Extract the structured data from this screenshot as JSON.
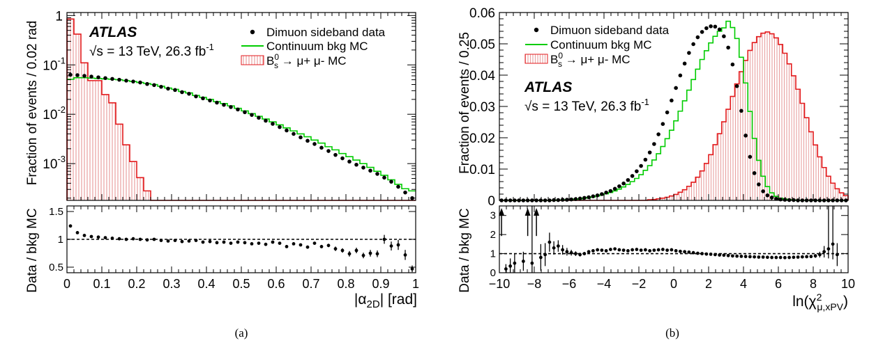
{
  "colors": {
    "data": "#000000",
    "bkg": "#00cc00",
    "signal": "#e31a1c",
    "hatch": "#e8a0a0"
  },
  "chart_data": [
    {
      "type": "histogram",
      "caption": "(a)",
      "ylabel": "Fraction of events / 0.02 rad",
      "xlabel": "|α2D| [rad]",
      "xlabel_parts": {
        "pre": "|α",
        "sub": "2D",
        "post": "| [rad]"
      },
      "y_scale": "log",
      "xlim": [
        0,
        1
      ],
      "ylim": [
        0.00018,
        1.15
      ],
      "x_ticks": [
        0,
        0.1,
        0.2,
        0.3,
        0.4,
        0.5,
        0.6,
        0.7,
        0.8,
        0.9,
        1
      ],
      "x_tick_labels": [
        "0",
        "0.1",
        "0.2",
        "0.3",
        "0.4",
        "0.5",
        "0.6",
        "0.7",
        "0.8",
        "0.9",
        "1"
      ],
      "y_ticks": [
        1,
        0.1,
        0.01,
        0.001
      ],
      "y_tick_labels": [
        {
          "base": "1",
          "exp": ""
        },
        {
          "base": "10",
          "exp": "-1"
        },
        {
          "base": "10",
          "exp": "-2"
        },
        {
          "base": "10",
          "exp": "-3"
        }
      ],
      "atlas": {
        "label": "ATLAS",
        "energy_pre": "√s = 13 TeV, 26.3 fb",
        "energy_exp": "-1"
      },
      "legend": {
        "data": "Dimuon sideband data",
        "bkg": "Continuum bkg MC",
        "signal": {
          "pre": "B",
          "sup": "0",
          "sub": "s",
          "post": " → μ+ μ- MC"
        }
      },
      "bin_width": 0.02,
      "signal_values": [
        0.85,
        0.42,
        0.11,
        0.048,
        0.048,
        0.025,
        0.017,
        0.0063,
        0.0024,
        0.0011,
        0.00052,
        0.00028,
        0.00018,
        0.00018,
        0.00018,
        0.00018,
        0.00018,
        0.00018,
        0.00018,
        0.00018,
        0.00018,
        0.00018,
        0.00018,
        0.00018,
        0.00018,
        0.00018,
        0.00018,
        0.00018,
        0.00018,
        0.00018,
        0.00018,
        0.00018,
        0.00018,
        0.00018,
        0.00018,
        0.00018,
        0.00018,
        0.00018,
        0.00018,
        0.00018,
        0.00018,
        0.00018,
        0.00018,
        0.00018,
        0.00018,
        0.00018,
        0.00018,
        0.00018,
        0.00018,
        0.00018
      ],
      "bkg_values": [
        0.051,
        0.055,
        0.055,
        0.054,
        0.053,
        0.052,
        0.051,
        0.05,
        0.048,
        0.046,
        0.044,
        0.042,
        0.04,
        0.037,
        0.034,
        0.032,
        0.029,
        0.027,
        0.024,
        0.022,
        0.02,
        0.018,
        0.0165,
        0.0148,
        0.0132,
        0.0117,
        0.0103,
        0.0091,
        0.008,
        0.007,
        0.0061,
        0.0053,
        0.0046,
        0.004,
        0.0035,
        0.003,
        0.0026,
        0.0022,
        0.0019,
        0.0016,
        0.00138,
        0.00118,
        0.001,
        0.00084,
        0.0007,
        0.00058,
        0.00047,
        0.00038,
        0.00031,
        0.00028
      ],
      "data_x": [
        0.01,
        0.03,
        0.05,
        0.07,
        0.09,
        0.11,
        0.13,
        0.15,
        0.17,
        0.19,
        0.21,
        0.23,
        0.25,
        0.27,
        0.29,
        0.31,
        0.33,
        0.35,
        0.37,
        0.39,
        0.41,
        0.43,
        0.45,
        0.47,
        0.49,
        0.51,
        0.53,
        0.55,
        0.57,
        0.59,
        0.61,
        0.63,
        0.65,
        0.67,
        0.69,
        0.71,
        0.73,
        0.75,
        0.77,
        0.79,
        0.81,
        0.83,
        0.85,
        0.87,
        0.89,
        0.91,
        0.93,
        0.95,
        0.97,
        0.99
      ],
      "data_values": [
        0.063,
        0.062,
        0.06,
        0.058,
        0.056,
        0.054,
        0.052,
        0.05,
        0.048,
        0.046,
        0.044,
        0.041,
        0.039,
        0.036,
        0.033,
        0.031,
        0.028,
        0.026,
        0.023,
        0.021,
        0.019,
        0.0172,
        0.0155,
        0.014,
        0.0125,
        0.011,
        0.0097,
        0.0085,
        0.0074,
        0.0064,
        0.0055,
        0.0047,
        0.004,
        0.0034,
        0.0029,
        0.0025,
        0.0021,
        0.0018,
        0.0015,
        0.00128,
        0.0011,
        0.00095,
        0.00083,
        0.00072,
        0.00062,
        0.00052,
        0.00043,
        0.00034,
        0.00026,
        0.0002
      ],
      "ratio": {
        "ylabel": "Data / bkg MC",
        "ylim": [
          0.4,
          1.6
        ],
        "y_ticks": [
          0.5,
          1,
          1.5
        ],
        "y_tick_labels": [
          "0.5",
          "1",
          "1.5"
        ],
        "reference": 1,
        "x": [
          0.01,
          0.03,
          0.05,
          0.07,
          0.09,
          0.11,
          0.13,
          0.15,
          0.17,
          0.19,
          0.21,
          0.23,
          0.25,
          0.27,
          0.29,
          0.31,
          0.33,
          0.35,
          0.37,
          0.39,
          0.41,
          0.43,
          0.45,
          0.47,
          0.49,
          0.51,
          0.53,
          0.55,
          0.57,
          0.59,
          0.61,
          0.63,
          0.65,
          0.67,
          0.69,
          0.71,
          0.73,
          0.75,
          0.77,
          0.79,
          0.81,
          0.83,
          0.85,
          0.87,
          0.89,
          0.91,
          0.93,
          0.95,
          0.97,
          0.99
        ],
        "values": [
          1.24,
          1.12,
          1.07,
          1.05,
          1.04,
          1.03,
          1.02,
          1.01,
          1.0,
          1.01,
          1.0,
          0.99,
          1.0,
          0.98,
          0.97,
          0.98,
          0.96,
          0.97,
          0.98,
          0.95,
          0.96,
          0.94,
          0.95,
          0.93,
          0.95,
          0.94,
          0.92,
          0.93,
          0.91,
          0.95,
          0.93,
          0.87,
          0.92,
          0.9,
          0.86,
          0.93,
          0.87,
          0.89,
          0.83,
          0.8,
          0.74,
          0.8,
          0.71,
          0.75,
          0.74,
          1.0,
          0.88,
          0.9,
          0.72,
          0.47
        ],
        "errors": [
          0.01,
          0.01,
          0.01,
          0.01,
          0.01,
          0.01,
          0.01,
          0.01,
          0.01,
          0.01,
          0.01,
          0.01,
          0.01,
          0.01,
          0.01,
          0.01,
          0.01,
          0.01,
          0.01,
          0.01,
          0.01,
          0.01,
          0.01,
          0.01,
          0.01,
          0.01,
          0.01,
          0.01,
          0.01,
          0.02,
          0.02,
          0.02,
          0.02,
          0.02,
          0.02,
          0.02,
          0.03,
          0.03,
          0.04,
          0.04,
          0.05,
          0.05,
          0.05,
          0.06,
          0.06,
          0.08,
          0.08,
          0.09,
          0.09,
          0.06
        ]
      }
    },
    {
      "type": "histogram",
      "caption": "(b)",
      "ylabel": "Fraction of events / 0.25",
      "xlabel": "ln(χ2μ,xPV)",
      "xlabel_parts": {
        "pre": "ln(χ",
        "sup": "2",
        "sub": "μ,xPV",
        "post": ")"
      },
      "y_scale": "linear",
      "xlim": [
        -10,
        10
      ],
      "ylim": [
        0,
        0.06
      ],
      "x_ticks": [
        -10,
        -8,
        -6,
        -4,
        -2,
        0,
        2,
        4,
        6,
        8,
        10
      ],
      "x_tick_labels": [
        "−10",
        "−8",
        "−6",
        "−4",
        "−2",
        "0",
        "2",
        "4",
        "6",
        "8",
        "10"
      ],
      "y_ticks": [
        0,
        0.01,
        0.02,
        0.03,
        0.04,
        0.05,
        0.06
      ],
      "y_tick_labels": [
        "0",
        "0.01",
        "0.02",
        "0.03",
        "0.04",
        "0.05",
        "0.06"
      ],
      "atlas": {
        "label": "ATLAS",
        "energy_pre": "√s = 13 TeV, 26.3 fb",
        "energy_exp": "-1"
      },
      "legend": {
        "data": "Dimuon sideband data",
        "bkg": "Continuum bkg MC",
        "signal": {
          "pre": "B",
          "sup": "0",
          "sub": "s",
          "post": " → μ+ μ- MC"
        }
      },
      "bin_width": 0.25,
      "bin_centers": [
        -9.875,
        -9.625,
        -9.375,
        -9.125,
        -8.875,
        -8.625,
        -8.375,
        -8.125,
        -7.875,
        -7.625,
        -7.375,
        -7.125,
        -6.875,
        -6.625,
        -6.375,
        -6.125,
        -5.875,
        -5.625,
        -5.375,
        -5.125,
        -4.875,
        -4.625,
        -4.375,
        -4.125,
        -3.875,
        -3.625,
        -3.375,
        -3.125,
        -2.875,
        -2.625,
        -2.375,
        -2.125,
        -1.875,
        -1.625,
        -1.375,
        -1.125,
        -0.875,
        -0.625,
        -0.375,
        -0.125,
        0.125,
        0.375,
        0.625,
        0.875,
        1.125,
        1.375,
        1.625,
        1.875,
        2.125,
        2.375,
        2.625,
        2.875,
        3.125,
        3.375,
        3.625,
        3.875,
        4.125,
        4.375,
        4.625,
        4.875,
        5.125,
        5.375,
        5.625,
        5.875,
        6.125,
        6.375,
        6.625,
        6.875,
        7.125,
        7.375,
        7.625,
        7.875,
        8.125,
        8.375,
        8.625,
        8.875,
        9.125,
        9.375,
        9.625,
        9.875
      ],
      "signal_values": [
        0,
        0,
        0,
        0,
        0,
        0,
        0,
        0,
        0,
        0,
        0,
        0,
        0,
        0,
        0,
        0,
        0,
        0,
        0,
        0,
        0,
        0,
        0,
        0,
        0,
        0,
        0,
        0,
        0,
        0,
        0,
        0,
        0,
        0,
        0.0002,
        0.0003,
        0.0005,
        0.0007,
        0.001,
        0.0014,
        0.0019,
        0.0026,
        0.0034,
        0.0045,
        0.0058,
        0.0074,
        0.0094,
        0.0118,
        0.0146,
        0.0178,
        0.0213,
        0.0251,
        0.0291,
        0.0332,
        0.0372,
        0.0411,
        0.0447,
        0.0479,
        0.0504,
        0.0523,
        0.0534,
        0.0538,
        0.0532,
        0.0519,
        0.0498,
        0.047,
        0.0436,
        0.0398,
        0.0355,
        0.031,
        0.0264,
        0.0219,
        0.0177,
        0.0139,
        0.0105,
        0.0077,
        0.0055,
        0.0037,
        0.0024,
        0.0015
      ],
      "bkg_values": [
        0,
        0,
        0,
        0,
        0,
        0,
        0,
        0,
        0,
        0,
        0,
        0,
        0,
        0.0001,
        0.0001,
        0.0002,
        0.0003,
        0.0004,
        0.0005,
        0.0007,
        0.0009,
        0.0011,
        0.0014,
        0.0017,
        0.0021,
        0.0025,
        0.003,
        0.0036,
        0.0043,
        0.0051,
        0.006,
        0.007,
        0.0082,
        0.0096,
        0.0111,
        0.0129,
        0.0149,
        0.0172,
        0.0197,
        0.0224,
        0.0254,
        0.0285,
        0.0318,
        0.0352,
        0.0386,
        0.0419,
        0.045,
        0.0478,
        0.0503,
        0.0524,
        0.054,
        0.0551,
        0.0572,
        0.0552,
        0.0517,
        0.0457,
        0.0375,
        0.0284,
        0.0198,
        0.0128,
        0.0077,
        0.0044,
        0.0024,
        0.0013,
        0.0007,
        0.0004,
        0.0002,
        0.0001,
        0,
        0,
        0,
        0,
        0,
        0,
        0,
        0,
        0,
        0,
        0,
        0
      ],
      "data_x": [
        -9.875,
        -9.625,
        -9.375,
        -9.125,
        -8.875,
        -8.625,
        -8.375,
        -8.125,
        -7.875,
        -7.625,
        -7.375,
        -7.125,
        -6.875,
        -6.625,
        -6.375,
        -6.125,
        -5.875,
        -5.625,
        -5.375,
        -5.125,
        -4.875,
        -4.625,
        -4.375,
        -4.125,
        -3.875,
        -3.625,
        -3.375,
        -3.125,
        -2.875,
        -2.625,
        -2.375,
        -2.125,
        -1.875,
        -1.625,
        -1.375,
        -1.125,
        -0.875,
        -0.625,
        -0.375,
        -0.125,
        0.125,
        0.375,
        0.625,
        0.875,
        1.125,
        1.375,
        1.625,
        1.875,
        2.125,
        2.375,
        2.625,
        2.875,
        3.125,
        3.375,
        3.625,
        3.875,
        4.125,
        4.375,
        4.625,
        4.875,
        5.125,
        5.375,
        5.625,
        5.875,
        6.125,
        6.375,
        6.625,
        6.875,
        7.125,
        7.375,
        7.625,
        7.875,
        8.125,
        8.375,
        8.625,
        8.875,
        9.125,
        9.375,
        9.625,
        9.875
      ],
      "data_values": [
        0,
        0,
        0,
        0,
        0,
        0,
        0,
        0,
        0,
        0,
        0,
        0,
        0.0001,
        0.0001,
        0.0002,
        0.0002,
        0.0003,
        0.0004,
        0.0006,
        0.0008,
        0.001,
        0.0013,
        0.0016,
        0.002,
        0.0025,
        0.003,
        0.0037,
        0.0045,
        0.0054,
        0.0065,
        0.0078,
        0.0093,
        0.011,
        0.013,
        0.0153,
        0.018,
        0.0211,
        0.0244,
        0.0281,
        0.0319,
        0.0359,
        0.0399,
        0.0437,
        0.0471,
        0.0499,
        0.0521,
        0.0538,
        0.055,
        0.0556,
        0.0555,
        0.0546,
        0.0524,
        0.0488,
        0.0434,
        0.0365,
        0.0286,
        0.0207,
        0.0139,
        0.0087,
        0.0051,
        0.0029,
        0.0016,
        0.0009,
        0.0005,
        0.0003,
        0.0002,
        0.0001,
        0.0001,
        0,
        0,
        0,
        0,
        0,
        0,
        0,
        0,
        0,
        0,
        0,
        0
      ],
      "ratio": {
        "ylabel": "Data / bkg MC",
        "ylim": [
          0,
          3.5
        ],
        "y_ticks": [
          0,
          1,
          2,
          3
        ],
        "y_tick_labels": [
          "0",
          "1",
          "2",
          "3"
        ],
        "reference": 1,
        "x": [
          -9.875,
          -9.625,
          -9.375,
          -9.125,
          -8.625,
          -8.375,
          -8.125,
          -7.875,
          -7.625,
          -7.375,
          -7.125,
          -6.875,
          -6.625,
          -6.375,
          -6.125,
          -5.875,
          -5.625,
          -5.375,
          -5.125,
          -4.875,
          -4.625,
          -4.375,
          -4.125,
          -3.875,
          -3.625,
          -3.375,
          -3.125,
          -2.875,
          -2.625,
          -2.375,
          -2.125,
          -1.875,
          -1.625,
          -1.375,
          -1.125,
          -0.875,
          -0.625,
          -0.375,
          -0.125,
          0.125,
          0.375,
          0.625,
          0.875,
          1.125,
          1.375,
          1.625,
          1.875,
          2.125,
          2.375,
          2.625,
          2.875,
          3.125,
          3.375,
          3.625,
          3.875,
          4.125,
          4.375,
          4.625,
          4.875,
          5.125,
          5.375,
          5.625,
          5.875,
          6.125,
          6.375,
          6.625,
          6.875,
          7.125,
          7.375,
          7.625,
          7.875,
          8.125,
          8.375,
          8.625,
          8.875,
          9.125,
          9.375
        ],
        "values": [
          3.3,
          0.2,
          0.35,
          0.5,
          0.6,
          3.3,
          0.5,
          3.3,
          0.8,
          0.95,
          1.6,
          1.3,
          1.4,
          1.2,
          1.1,
          1.05,
          1.0,
          0.95,
          1.0,
          1.1,
          1.15,
          1.2,
          1.18,
          1.15,
          1.22,
          1.25,
          1.2,
          1.18,
          1.15,
          1.2,
          1.22,
          1.18,
          1.2,
          1.15,
          1.18,
          1.2,
          1.22,
          1.18,
          1.2,
          1.15,
          1.12,
          1.1,
          1.08,
          1.05,
          1.02,
          1.0,
          0.98,
          0.97,
          0.95,
          0.93,
          0.92,
          0.9,
          0.88,
          0.87,
          0.86,
          0.85,
          0.84,
          0.83,
          0.82,
          0.82,
          0.81,
          0.8,
          0.8,
          0.8,
          0.79,
          0.8,
          0.81,
          0.82,
          0.83,
          0.84,
          0.85,
          0.88,
          0.95,
          1.1,
          1.25,
          1.5,
          0.95
        ],
        "errors": [
          0.3,
          0.25,
          0.4,
          0.5,
          0.5,
          0.3,
          0.6,
          0.3,
          0.7,
          0.6,
          0.5,
          0.35,
          0.3,
          0.25,
          0.2,
          0.15,
          0.12,
          0.1,
          0.08,
          0.06,
          0.05,
          0.04,
          0.03,
          0.03,
          0.02,
          0.02,
          0.02,
          0.02,
          0.02,
          0.02,
          0.01,
          0.01,
          0.01,
          0.01,
          0.01,
          0.01,
          0.01,
          0.01,
          0.01,
          0.01,
          0.01,
          0.01,
          0.01,
          0.01,
          0.01,
          0.01,
          0.01,
          0.01,
          0.01,
          0.01,
          0.01,
          0.01,
          0.01,
          0.01,
          0.01,
          0.01,
          0.01,
          0.01,
          0.01,
          0.01,
          0.01,
          0.01,
          0.02,
          0.02,
          0.02,
          0.03,
          0.03,
          0.04,
          0.05,
          0.06,
          0.08,
          0.1,
          0.15,
          0.3,
          0.5,
          0.8,
          0.6
        ],
        "arrows_at": [
          -9.875,
          -8.375,
          -7.875,
          9.875
        ],
        "long_error_bars_at": [
          -8.125,
          8.875,
          9.125
        ]
      }
    }
  ]
}
